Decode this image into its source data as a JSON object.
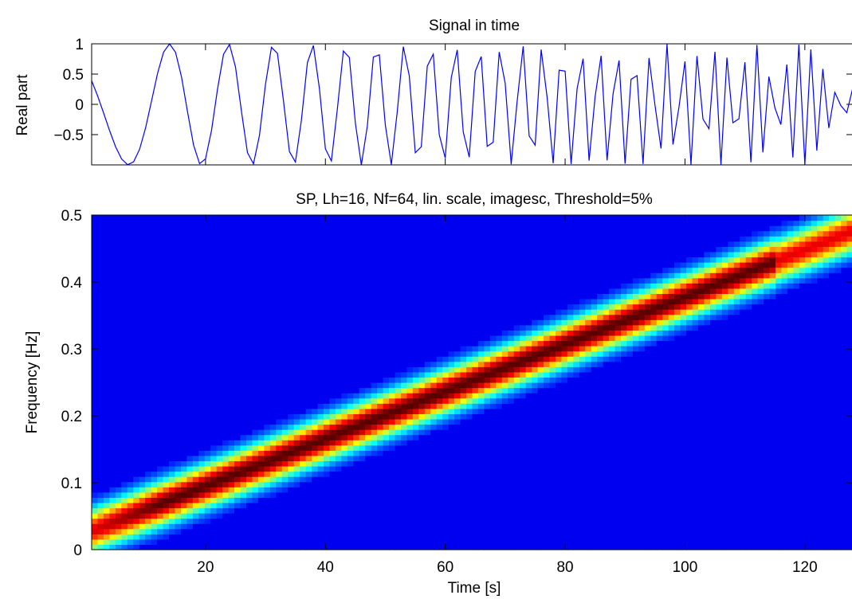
{
  "chart_data": [
    {
      "type": "line",
      "title": "Signal in time",
      "xlabel": "",
      "ylabel": "Real part",
      "xlim": [
        1,
        128
      ],
      "ylim": [
        -1,
        1
      ],
      "yticks": [
        -0.5,
        0,
        0.5,
        1
      ],
      "ytick_labels": [
        "−0.5",
        "0",
        "0.5",
        "1"
      ],
      "xticks": [
        20,
        40,
        60,
        80,
        100,
        120
      ],
      "show_xtick_labels": false,
      "grid": false,
      "series": [
        {
          "color": "#0000ff",
          "signal": "real part of linear chirp",
          "fnorm_start": 0.04,
          "fnorm_end": 0.48,
          "points": 128
        }
      ]
    },
    {
      "type": "heatmap",
      "title": "SP, Lh=16, Nf=64, lin. scale, imagesc, Threshold=5%",
      "xlabel": "Time [s]",
      "ylabel": "Frequency [Hz]",
      "xlim": [
        1,
        128
      ],
      "ylim": [
        0,
        0.5
      ],
      "xticks": [
        20,
        40,
        60,
        80,
        100,
        120
      ],
      "xtick_labels": [
        "20",
        "40",
        "60",
        "80",
        "100",
        "120"
      ],
      "yticks": [
        0,
        0.1,
        0.2,
        0.3,
        0.4,
        0.5
      ],
      "ytick_labels": [
        "0",
        "0.1",
        "0.2",
        "0.3",
        "0.4",
        "0.5"
      ],
      "grid": false,
      "colormap": "jet",
      "time_bins": 128,
      "frequency_bins": 64,
      "ridge": {
        "time_start": 1,
        "freq_start": 0.03,
        "time_end": 128,
        "freq_end": 0.475
      },
      "threshold_percent": 5
    }
  ]
}
